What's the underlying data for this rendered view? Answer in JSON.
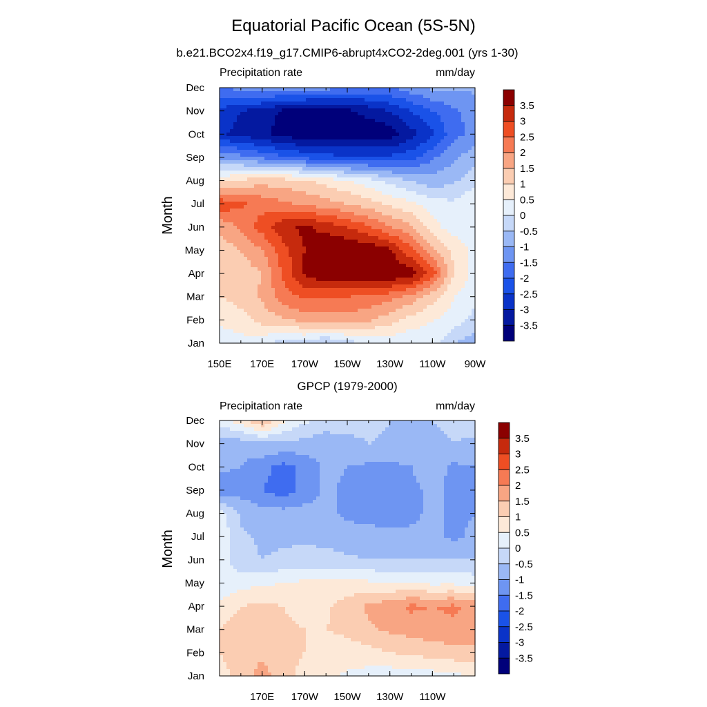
{
  "figure": {
    "title": "Equatorial Pacific Ocean (5S-5N)"
  },
  "colormap": {
    "levels": [
      -3.5,
      -3,
      -2.5,
      -2,
      -1.5,
      -1,
      -0.5,
      0,
      0.5,
      1,
      1.5,
      2,
      2.5,
      3,
      3.5
    ],
    "colors": [
      "#00007a",
      "#0419a0",
      "#0a33c8",
      "#1a52e8",
      "#3f6cf0",
      "#6e95f2",
      "#9ab8f5",
      "#c6d8f8",
      "#e6f0fb",
      "#fde9d8",
      "#fbcdb2",
      "#f8a583",
      "#f67a54",
      "#ee4e23",
      "#c62a0d",
      "#8b0000"
    ]
  },
  "chart_data": [
    {
      "type": "heatmap",
      "title": "b.e21.BCO2x4.f19_g17.CMIP6-abrupt4xCO2-2deg.001 (yrs 1-30)",
      "left_label": "Precipitation rate",
      "right_label": "mm/day",
      "xlabel": "",
      "ylabel": "Month",
      "x_tick_labels": [
        "150E",
        "170E",
        "170W",
        "150W",
        "130W",
        "110W",
        "90W"
      ],
      "y_tick_labels": [
        "Jan",
        "Feb",
        "Mar",
        "Apr",
        "May",
        "Jun",
        "Jul",
        "Aug",
        "Sep",
        "Oct",
        "Nov",
        "Dec"
      ],
      "colorbar_labels": [
        "3.5",
        "3",
        "2.5",
        "2",
        "1.5",
        "1",
        "0.5",
        "0",
        "-0.5",
        "-1",
        "-1.5",
        "-2",
        "-2.5",
        "-3",
        "-3.5"
      ],
      "xlim": [
        150,
        270
      ],
      "ylim": [
        1,
        12
      ],
      "x": [
        150,
        160,
        170,
        180,
        190,
        200,
        210,
        220,
        230,
        240,
        250,
        260,
        270
      ],
      "y": [
        "Jan",
        "Feb",
        "Mar",
        "Apr",
        "May",
        "Jun",
        "Jul",
        "Aug",
        "Sep",
        "Oct",
        "Nov",
        "Dec"
      ],
      "z": [
        [
          0.2,
          0.3,
          0.2,
          -0.3,
          -0.2,
          -0.6,
          -0.2,
          0.0,
          0.2,
          0.0,
          0.3,
          -0.5,
          -0.8
        ],
        [
          0.6,
          0.8,
          1.2,
          1.4,
          1.7,
          1.8,
          1.8,
          1.6,
          1.2,
          0.8,
          0.5,
          0.3,
          -0.2
        ],
        [
          1.0,
          1.2,
          1.6,
          2.3,
          2.6,
          2.5,
          2.5,
          2.4,
          2.2,
          1.8,
          1.2,
          0.5,
          0.2
        ],
        [
          1.1,
          1.2,
          1.5,
          2.6,
          3.6,
          4.0,
          4.0,
          4.1,
          4.0,
          3.8,
          2.8,
          1.0,
          0.3
        ],
        [
          1.2,
          1.5,
          2.0,
          2.8,
          3.5,
          4.1,
          4.0,
          3.9,
          3.6,
          2.6,
          1.6,
          0.9,
          0.3
        ],
        [
          1.6,
          2.1,
          2.7,
          3.4,
          3.6,
          3.3,
          3.0,
          2.6,
          2.0,
          1.6,
          0.7,
          0.2,
          0.3
        ],
        [
          2.9,
          2.6,
          2.3,
          2.1,
          1.9,
          1.7,
          1.5,
          1.2,
          0.9,
          0.6,
          0.2,
          0.1,
          0.5
        ],
        [
          0.8,
          1.1,
          1.3,
          1.2,
          1.1,
          0.8,
          0.5,
          0.2,
          -0.2,
          -0.5,
          -0.8,
          -0.6,
          -0.2
        ],
        [
          -1.1,
          -1.3,
          -1.6,
          -1.9,
          -2.1,
          -2.3,
          -2.4,
          -2.4,
          -2.4,
          -2.2,
          -1.6,
          -1.1,
          -0.7
        ],
        [
          -2.9,
          -3.2,
          -3.4,
          -3.7,
          -3.9,
          -3.9,
          -3.9,
          -3.9,
          -3.8,
          -3.2,
          -2.6,
          -1.7,
          -1.3
        ],
        [
          -2.6,
          -3.0,
          -3.2,
          -3.6,
          -3.7,
          -3.7,
          -3.6,
          -3.3,
          -3.0,
          -2.5,
          -2.0,
          -1.6,
          -1.3
        ],
        [
          -1.6,
          -1.3,
          -1.1,
          -1.2,
          -1.2,
          -1.3,
          -1.4,
          -1.6,
          -1.5,
          -1.2,
          -0.9,
          -0.9,
          -0.9
        ]
      ]
    },
    {
      "type": "heatmap",
      "title": "GPCP (1979-2000)",
      "left_label": "Precipitation rate",
      "right_label": "mm/day",
      "xlabel": "",
      "ylabel": "Month",
      "x_tick_labels": [
        "170E",
        "170W",
        "150W",
        "130W",
        "110W"
      ],
      "y_tick_labels": [
        "Jan",
        "Feb",
        "Mar",
        "Apr",
        "May",
        "Jun",
        "Jul",
        "Aug",
        "Sep",
        "Oct",
        "Nov",
        "Dec"
      ],
      "colorbar_labels": [
        "3.5",
        "3",
        "2.5",
        "2",
        "1.5",
        "1",
        "0.5",
        "0",
        "-0.5",
        "-1",
        "-1.5",
        "-2",
        "-2.5",
        "-3",
        "-3.5"
      ],
      "xlim": [
        150,
        270
      ],
      "ylim": [
        1,
        12
      ],
      "x": [
        150,
        160,
        170,
        180,
        190,
        200,
        210,
        220,
        230,
        240,
        250,
        260,
        270
      ],
      "y": [
        "Jan",
        "Feb",
        "Mar",
        "Apr",
        "May",
        "Jun",
        "Jul",
        "Aug",
        "Sep",
        "Oct",
        "Nov",
        "Dec"
      ],
      "z": [
        [
          0.8,
          1.2,
          1.7,
          1.2,
          0.8,
          0.6,
          0.4,
          0.3,
          0.2,
          0.2,
          0.3,
          0.4,
          0.5
        ],
        [
          1.0,
          1.3,
          1.4,
          1.2,
          1.0,
          0.8,
          0.8,
          0.8,
          1.0,
          1.1,
          1.2,
          1.3,
          1.3
        ],
        [
          1.0,
          1.3,
          1.3,
          1.1,
          1.0,
          1.0,
          1.1,
          1.4,
          1.6,
          1.7,
          1.8,
          1.9,
          1.8
        ],
        [
          0.6,
          1.0,
          1.1,
          1.0,
          0.8,
          0.9,
          1.3,
          1.6,
          1.8,
          2.1,
          2.0,
          2.1,
          1.8
        ],
        [
          0.1,
          0.3,
          0.4,
          0.5,
          0.6,
          0.6,
          0.6,
          0.6,
          0.5,
          0.5,
          0.4,
          0.4,
          0.3
        ],
        [
          0.2,
          -0.3,
          -0.5,
          -0.4,
          -0.3,
          -0.3,
          -0.4,
          -0.5,
          -0.5,
          -0.5,
          -0.5,
          -0.5,
          -0.5
        ],
        [
          0.4,
          -0.4,
          -0.6,
          -0.6,
          -0.6,
          -0.7,
          -0.8,
          -0.8,
          -0.9,
          -0.9,
          -0.9,
          -1.1,
          -0.9
        ],
        [
          0.2,
          -0.6,
          -0.8,
          -0.8,
          -0.8,
          -0.9,
          -1.1,
          -1.2,
          -1.2,
          -1.1,
          -0.9,
          -1.1,
          -1.0
        ],
        [
          -1.4,
          -1.2,
          -1.5,
          -1.8,
          -1.3,
          -0.9,
          -1.1,
          -1.3,
          -1.3,
          -1.1,
          -0.9,
          -1.1,
          -1.0
        ],
        [
          -0.9,
          -1.0,
          -1.3,
          -1.7,
          -1.3,
          -0.9,
          -1.0,
          -1.1,
          -1.1,
          -1.0,
          -0.8,
          -1.1,
          -1.0
        ],
        [
          -0.9,
          -0.8,
          -0.6,
          -0.6,
          -0.7,
          -0.8,
          -0.7,
          -0.5,
          -0.6,
          -0.8,
          -0.6,
          -0.5,
          -0.6
        ],
        [
          0.3,
          0.8,
          1.5,
          0.6,
          0.1,
          -0.2,
          -0.2,
          -0.3,
          -0.5,
          -0.5,
          -0.5,
          -0.4,
          -0.3
        ]
      ]
    }
  ]
}
